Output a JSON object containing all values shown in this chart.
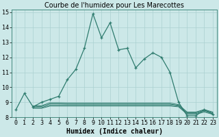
{
  "title": "Courbe de l'humidex pour Les Marecottes",
  "xlabel": "Humidex (Indice chaleur)",
  "bg_color": "#cce8e8",
  "line_color": "#2e7b6e",
  "grid_color": "#aad0d0",
  "xlim": [
    -0.5,
    23.5
  ],
  "ylim": [
    8,
    15.2
  ],
  "xticks": [
    0,
    1,
    2,
    3,
    4,
    5,
    6,
    7,
    8,
    9,
    10,
    11,
    12,
    13,
    14,
    15,
    16,
    17,
    18,
    19,
    20,
    21,
    22,
    23
  ],
  "yticks": [
    8,
    9,
    10,
    11,
    12,
    13,
    14,
    15
  ],
  "main_line": {
    "x": [
      0,
      1,
      2,
      3,
      4,
      5,
      6,
      7,
      8,
      9,
      10,
      11,
      12,
      13,
      14,
      15,
      16,
      17,
      18,
      19,
      20,
      21,
      22,
      23
    ],
    "y": [
      8.5,
      9.6,
      8.7,
      9.0,
      9.2,
      9.4,
      10.5,
      11.2,
      12.6,
      14.9,
      13.3,
      14.3,
      12.5,
      12.6,
      11.3,
      11.9,
      12.3,
      12.0,
      11.0,
      9.0,
      8.1,
      8.1,
      8.5,
      8.2
    ]
  },
  "flat_lines": [
    {
      "x": [
        2,
        3,
        4,
        5,
        6,
        7,
        8,
        9,
        10,
        11,
        12,
        13,
        14,
        15,
        16,
        17,
        18,
        19,
        20,
        21,
        22,
        23
      ],
      "y": [
        8.6,
        8.6,
        8.75,
        8.75,
        8.75,
        8.75,
        8.75,
        8.75,
        8.75,
        8.75,
        8.75,
        8.75,
        8.75,
        8.75,
        8.75,
        8.75,
        8.75,
        8.7,
        8.2,
        8.2,
        8.35,
        8.2
      ]
    },
    {
      "x": [
        2,
        3,
        4,
        5,
        6,
        7,
        8,
        9,
        10,
        11,
        12,
        13,
        14,
        15,
        16,
        17,
        18,
        19,
        20,
        21,
        22,
        23
      ],
      "y": [
        8.65,
        8.65,
        8.82,
        8.82,
        8.82,
        8.82,
        8.82,
        8.82,
        8.82,
        8.82,
        8.82,
        8.82,
        8.82,
        8.82,
        8.82,
        8.82,
        8.82,
        8.75,
        8.25,
        8.25,
        8.42,
        8.25
      ]
    },
    {
      "x": [
        2,
        3,
        4,
        5,
        6,
        7,
        8,
        9,
        10,
        11,
        12,
        13,
        14,
        15,
        16,
        17,
        18,
        19,
        20,
        21,
        22,
        23
      ],
      "y": [
        8.7,
        8.72,
        8.9,
        8.9,
        8.88,
        8.88,
        8.88,
        8.88,
        8.88,
        8.88,
        8.88,
        8.88,
        8.88,
        8.88,
        8.88,
        8.88,
        8.88,
        8.8,
        8.3,
        8.3,
        8.48,
        8.3
      ]
    },
    {
      "x": [
        2,
        3,
        4,
        5,
        6,
        7,
        8,
        9,
        10,
        11,
        12,
        13,
        14,
        15,
        16,
        17,
        18,
        19,
        20,
        21,
        22,
        23
      ],
      "y": [
        8.75,
        8.78,
        8.97,
        8.97,
        8.95,
        8.95,
        8.95,
        8.95,
        8.95,
        8.95,
        8.95,
        8.95,
        8.95,
        8.95,
        8.95,
        8.95,
        8.95,
        8.85,
        8.35,
        8.35,
        8.52,
        8.35
      ]
    }
  ],
  "title_fontsize": 7,
  "xlabel_fontsize": 7,
  "tick_fontsize": 6
}
